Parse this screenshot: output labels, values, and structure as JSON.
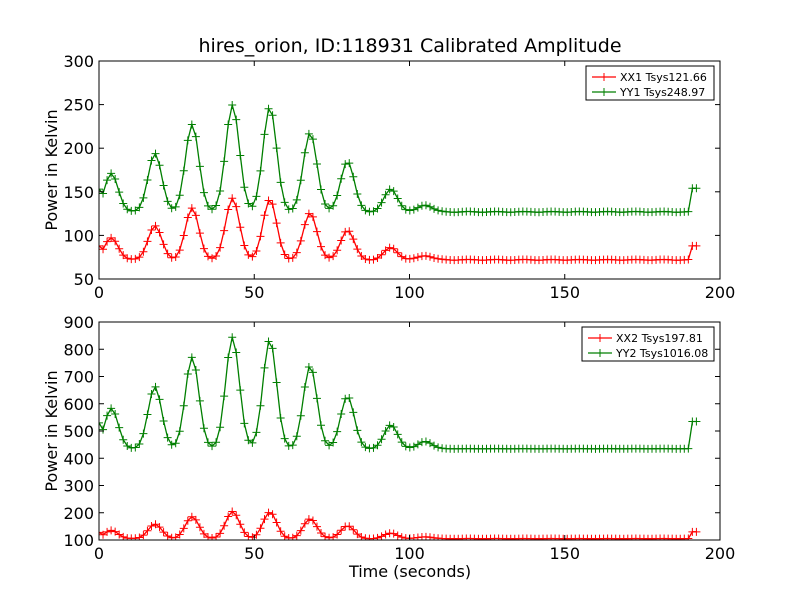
{
  "chart_data": [
    {
      "type": "line",
      "title": "hires_orion, ID:118931 Calibrated Amplitude",
      "xlabel": "",
      "ylabel": "Power in Kelvin",
      "xlim": [
        0,
        200
      ],
      "ylim": [
        50,
        300
      ],
      "xticks": [
        "0",
        "50",
        "100",
        "150",
        "200"
      ],
      "yticks": [
        "50",
        "100",
        "150",
        "200",
        "250",
        "300"
      ],
      "legend_position": "top-right",
      "grid": false,
      "series": [
        {
          "name": "XX1 Tsys121.66",
          "color": "#ff0000",
          "baseline": 72,
          "start_level": 88,
          "end_level": 88,
          "peaks": [
            [
              4,
              97
            ],
            [
              18,
              111
            ],
            [
              30,
              131
            ],
            [
              43,
              143
            ],
            [
              55,
              141
            ],
            [
              68,
              126
            ],
            [
              80,
              106
            ],
            [
              94,
              86
            ],
            [
              105,
              77
            ]
          ]
        },
        {
          "name": "YY1 Tsys248.97",
          "color": "#007f00",
          "baseline": 127,
          "start_level": 153,
          "end_level": 154,
          "peaks": [
            [
              4,
              171
            ],
            [
              18,
              194
            ],
            [
              30,
              227
            ],
            [
              43,
              250
            ],
            [
              55,
              247
            ],
            [
              68,
              218
            ],
            [
              80,
              185
            ],
            [
              94,
              153
            ],
            [
              105,
              135
            ]
          ]
        }
      ]
    },
    {
      "type": "line",
      "title": "",
      "xlabel": "Time (seconds)",
      "ylabel": "Power in Kelvin",
      "xlim": [
        0,
        200
      ],
      "ylim": [
        100,
        900
      ],
      "xticks": [
        "0",
        "50",
        "100",
        "150",
        "200"
      ],
      "yticks": [
        "100",
        "200",
        "300",
        "400",
        "500",
        "600",
        "700",
        "800",
        "900"
      ],
      "legend_position": "top-right",
      "grid": false,
      "series": [
        {
          "name": "XX2 Tsys197.81",
          "color": "#ff0000",
          "baseline": 105,
          "start_level": 128,
          "end_level": 130,
          "peaks": [
            [
              4,
              135
            ],
            [
              18,
              158
            ],
            [
              30,
              185
            ],
            [
              43,
              205
            ],
            [
              55,
              202
            ],
            [
              68,
              178
            ],
            [
              80,
              152
            ],
            [
              94,
              125
            ],
            [
              105,
              112
            ]
          ]
        },
        {
          "name": "YY2 Tsys1016.08",
          "color": "#007f00",
          "baseline": 435,
          "start_level": 530,
          "end_level": 535,
          "peaks": [
            [
              4,
              583
            ],
            [
              18,
              663
            ],
            [
              30,
              770
            ],
            [
              43,
              845
            ],
            [
              55,
              835
            ],
            [
              68,
              740
            ],
            [
              80,
              628
            ],
            [
              94,
              522
            ],
            [
              105,
              462
            ]
          ]
        }
      ]
    }
  ]
}
